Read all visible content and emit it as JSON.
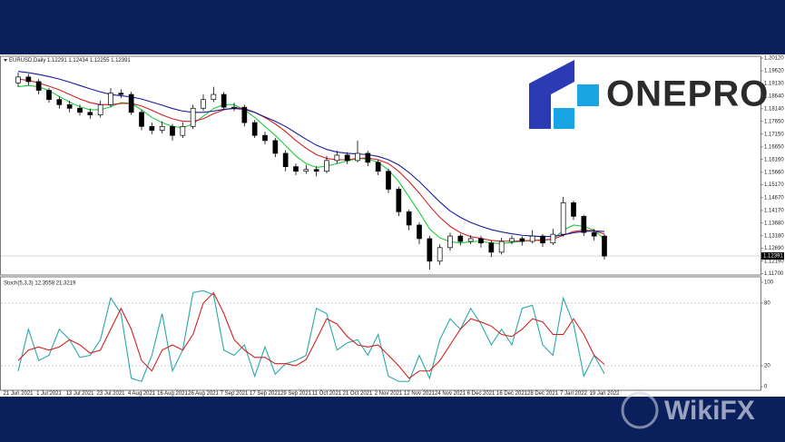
{
  "chart_data": [
    {
      "type": "candlestick",
      "title": "EURUSD,Daily  1.12291 1.12434 1.12255 1.12391",
      "categories": [
        "21 Jun 2021",
        null,
        null,
        "1 Jul 2021",
        null,
        null,
        "13 Jul 2021",
        null,
        null,
        "23 Jul 2021",
        null,
        null,
        "4 Aug 2021",
        null,
        null,
        "16 Aug 2021",
        null,
        null,
        "26 Aug 2021",
        null,
        null,
        "7 Sep 2021",
        null,
        null,
        "17 Sep 2021",
        null,
        null,
        "29 Sep 2021",
        null,
        null,
        "11 Oct 2021",
        null,
        null,
        "21 Oct 2021",
        null,
        null,
        "2 Nov 2021",
        null,
        null,
        "12 Nov 2021",
        null,
        null,
        "24 Nov 2021",
        null,
        null,
        "6 Dec 2021",
        null,
        null,
        "16 Dec 2021",
        null,
        null,
        "28 Dec 2021",
        null,
        null,
        "7 Jan 2022",
        null,
        null,
        "19 Jan 2022"
      ],
      "open": [
        1.1915,
        1.1938,
        1.192,
        1.1886,
        1.185,
        1.183,
        1.1816,
        1.18,
        1.179,
        1.183,
        1.1875,
        1.187,
        1.18,
        1.1745,
        1.173,
        1.1745,
        1.171,
        1.1745,
        1.1816,
        1.185,
        1.187,
        1.182,
        1.182,
        1.176,
        1.171,
        1.169,
        1.164,
        1.1588,
        1.157,
        1.1577,
        1.157,
        1.1612,
        1.1633,
        1.1612,
        1.164,
        1.1605,
        1.157,
        1.15,
        1.1412,
        1.136,
        1.1307,
        1.1219,
        1.1272,
        1.1317,
        1.1296,
        1.1307,
        1.129,
        1.1254,
        1.1296,
        1.1307,
        1.1296,
        1.1317,
        1.129,
        1.1324,
        1.1447,
        1.1394,
        1.1331,
        1.1317
      ],
      "high": [
        1.1955,
        1.195,
        1.193,
        1.1895,
        1.1862,
        1.1845,
        1.183,
        1.1815,
        1.1845,
        1.1895,
        1.189,
        1.188,
        1.181,
        1.176,
        1.1765,
        1.1755,
        1.176,
        1.183,
        1.187,
        1.19,
        1.188,
        1.1838,
        1.183,
        1.177,
        1.1725,
        1.17,
        1.1652,
        1.16,
        1.1595,
        1.159,
        1.163,
        1.165,
        1.1645,
        1.169,
        1.165,
        1.1615,
        1.158,
        1.151,
        1.142,
        1.137,
        1.1318,
        1.1285,
        1.133,
        1.1325,
        1.132,
        1.1318,
        1.13,
        1.131,
        1.132,
        1.1316,
        1.134,
        1.1325,
        1.1345,
        1.147,
        1.1455,
        1.14,
        1.1345,
        1.1325
      ],
      "low": [
        1.19,
        1.1905,
        1.187,
        1.1838,
        1.1815,
        1.18,
        1.1788,
        1.1775,
        1.178,
        1.182,
        1.1855,
        1.179,
        1.173,
        1.1715,
        1.1718,
        1.169,
        1.17,
        1.1735,
        1.1805,
        1.184,
        1.181,
        1.1805,
        1.1745,
        1.17,
        1.1675,
        1.1625,
        1.157,
        1.1555,
        1.156,
        1.155,
        1.1562,
        1.16,
        1.1598,
        1.1605,
        1.159,
        1.1555,
        1.1485,
        1.1395,
        1.134,
        1.1285,
        1.1186,
        1.1205,
        1.126,
        1.128,
        1.1285,
        1.1272,
        1.1235,
        1.1245,
        1.1285,
        1.128,
        1.1288,
        1.1275,
        1.1282,
        1.1315,
        1.138,
        1.1318,
        1.13,
        1.1226
      ],
      "close": [
        1.1938,
        1.192,
        1.1886,
        1.185,
        1.183,
        1.1816,
        1.18,
        1.179,
        1.183,
        1.1875,
        1.187,
        1.18,
        1.1745,
        1.173,
        1.1745,
        1.171,
        1.1745,
        1.1816,
        1.185,
        1.187,
        1.182,
        1.182,
        1.176,
        1.171,
        1.169,
        1.164,
        1.1588,
        1.157,
        1.1577,
        1.157,
        1.1612,
        1.1633,
        1.1612,
        1.164,
        1.1605,
        1.157,
        1.15,
        1.1412,
        1.136,
        1.1307,
        1.1219,
        1.1272,
        1.1317,
        1.1296,
        1.1307,
        1.129,
        1.1254,
        1.1296,
        1.1307,
        1.1296,
        1.1317,
        1.129,
        1.1324,
        1.1447,
        1.1394,
        1.1331,
        1.1317,
        1.12391
      ],
      "series": [
        {
          "color": "#1fcc3a",
          "values": [
            1.19,
            1.1905,
            1.19,
            1.1885,
            1.1862,
            1.184,
            1.1822,
            1.181,
            1.181,
            1.1822,
            1.1838,
            1.1835,
            1.181,
            1.178,
            1.176,
            1.1745,
            1.174,
            1.1755,
            1.1785,
            1.1815,
            1.183,
            1.183,
            1.181,
            1.178,
            1.1745,
            1.171,
            1.167,
            1.163,
            1.16,
            1.1585,
            1.159,
            1.16,
            1.161,
            1.162,
            1.1618,
            1.1605,
            1.1575,
            1.153,
            1.147,
            1.141,
            1.1345,
            1.131,
            1.1295,
            1.129,
            1.1295,
            1.1297,
            1.129,
            1.1288,
            1.1292,
            1.1297,
            1.13,
            1.13,
            1.1305,
            1.134,
            1.136,
            1.1355,
            1.134,
            1.1305
          ]
        },
        {
          "color": "#d42020",
          "values": [
            1.193,
            1.1925,
            1.1915,
            1.1902,
            1.1888,
            1.187,
            1.1852,
            1.1838,
            1.183,
            1.183,
            1.1835,
            1.1835,
            1.1825,
            1.1808,
            1.179,
            1.1775,
            1.1765,
            1.1765,
            1.1775,
            1.1795,
            1.181,
            1.1818,
            1.1815,
            1.18,
            1.178,
            1.1755,
            1.1725,
            1.169,
            1.166,
            1.1635,
            1.162,
            1.1615,
            1.1615,
            1.162,
            1.1622,
            1.1615,
            1.16,
            1.157,
            1.153,
            1.1485,
            1.1435,
            1.139,
            1.1355,
            1.133,
            1.1315,
            1.1308,
            1.13,
            1.1297,
            1.1297,
            1.1298,
            1.13,
            1.1302,
            1.1305,
            1.132,
            1.1335,
            1.134,
            1.1338,
            1.1325
          ]
        },
        {
          "color": "#1a1aa0",
          "values": [
            1.196,
            1.1955,
            1.1948,
            1.194,
            1.193,
            1.1918,
            1.1905,
            1.1892,
            1.188,
            1.187,
            1.1865,
            1.186,
            1.1852,
            1.184,
            1.1828,
            1.1815,
            1.1805,
            1.18,
            1.18,
            1.1805,
            1.1812,
            1.1815,
            1.1812,
            1.18,
            1.1782,
            1.1765,
            1.1745,
            1.172,
            1.1695,
            1.1672,
            1.1655,
            1.1645,
            1.164,
            1.1638,
            1.1635,
            1.1628,
            1.1615,
            1.1595,
            1.1565,
            1.153,
            1.149,
            1.145,
            1.1415,
            1.139,
            1.137,
            1.1355,
            1.1342,
            1.1333,
            1.1326,
            1.132,
            1.1317,
            1.1315,
            1.1316,
            1.1322,
            1.133,
            1.1335,
            1.1337,
            1.1335
          ]
        }
      ],
      "current_price": {
        "value": 1.12391,
        "label": "1.12391"
      },
      "ylim": [
        1.1165,
        1.2019
      ],
      "yticks": [
        {
          "value": 1.2012,
          "label": "1.20120"
        },
        {
          "value": 1.1962,
          "label": "1.19620"
        },
        {
          "value": 1.1913,
          "label": "1.19130"
        },
        {
          "value": 1.1864,
          "label": "1.18640"
        },
        {
          "value": 1.1814,
          "label": "1.18140"
        },
        {
          "value": 1.1765,
          "label": "1.17650"
        },
        {
          "value": 1.1715,
          "label": "1.17150"
        },
        {
          "value": 1.1665,
          "label": "1.16650"
        },
        {
          "value": 1.1616,
          "label": "1.16160"
        },
        {
          "value": 1.1566,
          "label": "1.15660"
        },
        {
          "value": 1.1517,
          "label": "1.15170"
        },
        {
          "value": 1.1467,
          "label": "1.14670"
        },
        {
          "value": 1.1417,
          "label": "1.14170"
        },
        {
          "value": 1.1368,
          "label": "1.13680"
        },
        {
          "value": 1.1318,
          "label": "1.13180"
        },
        {
          "value": 1.1269,
          "label": "1.12690"
        },
        {
          "value": 1.1219,
          "label": "1.12190"
        },
        {
          "value": 1.117,
          "label": "1.11700"
        }
      ],
      "grid": false
    },
    {
      "type": "line",
      "title": "Stoch(5,3,3) 12.3558 21.3219",
      "series": [
        {
          "color": "#2aa8a8",
          "values": [
            15,
            55,
            25,
            30,
            55,
            45,
            28,
            30,
            45,
            85,
            70,
            8,
            5,
            30,
            70,
            15,
            35,
            90,
            92,
            88,
            35,
            30,
            40,
            10,
            38,
            12,
            22,
            25,
            30,
            75,
            70,
            35,
            42,
            45,
            30,
            50,
            10,
            5,
            5,
            30,
            8,
            45,
            65,
            55,
            75,
            60,
            40,
            55,
            40,
            75,
            78,
            40,
            30,
            85,
            60,
            10,
            30,
            12.3558
          ]
        },
        {
          "color": "#d42020",
          "values": [
            25,
            35,
            38,
            35,
            38,
            45,
            40,
            32,
            35,
            55,
            75,
            55,
            25,
            15,
            35,
            40,
            35,
            50,
            80,
            90,
            70,
            45,
            35,
            28,
            28,
            22,
            22,
            20,
            26,
            45,
            65,
            60,
            48,
            40,
            38,
            40,
            30,
            20,
            8,
            15,
            15,
            25,
            40,
            55,
            65,
            62,
            58,
            50,
            48,
            55,
            65,
            62,
            50,
            50,
            65,
            50,
            30,
            21.3219
          ]
        }
      ],
      "ylim": [
        0,
        100
      ],
      "yticks": [
        0,
        20,
        80,
        100
      ],
      "grid": true
    }
  ],
  "logo": {
    "text": "ONEPRO"
  },
  "watermark": {
    "text": "WikiFX"
  }
}
